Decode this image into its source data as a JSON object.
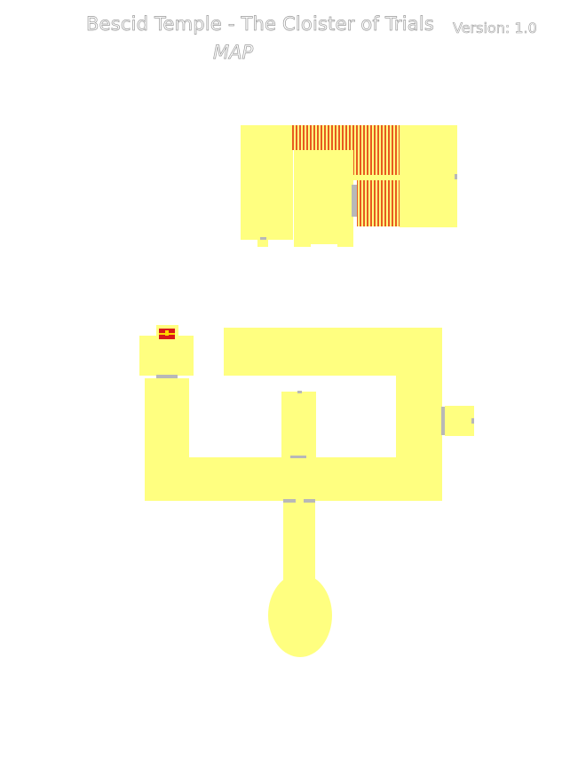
{
  "header": {
    "title": "Bescid Temple - The Cloister of Trials",
    "version": "Version: 1.0",
    "subtitle": "MAP"
  },
  "colors": {
    "floor": "#ffff80",
    "stairs": "#e85a20",
    "door": "#b8b8b8",
    "chest": "#d81818",
    "chest_trim": "#ffd400"
  },
  "icons": {
    "chest": "treasure-chest-icon",
    "door": "door-icon",
    "stairs": "staircase-icon"
  }
}
